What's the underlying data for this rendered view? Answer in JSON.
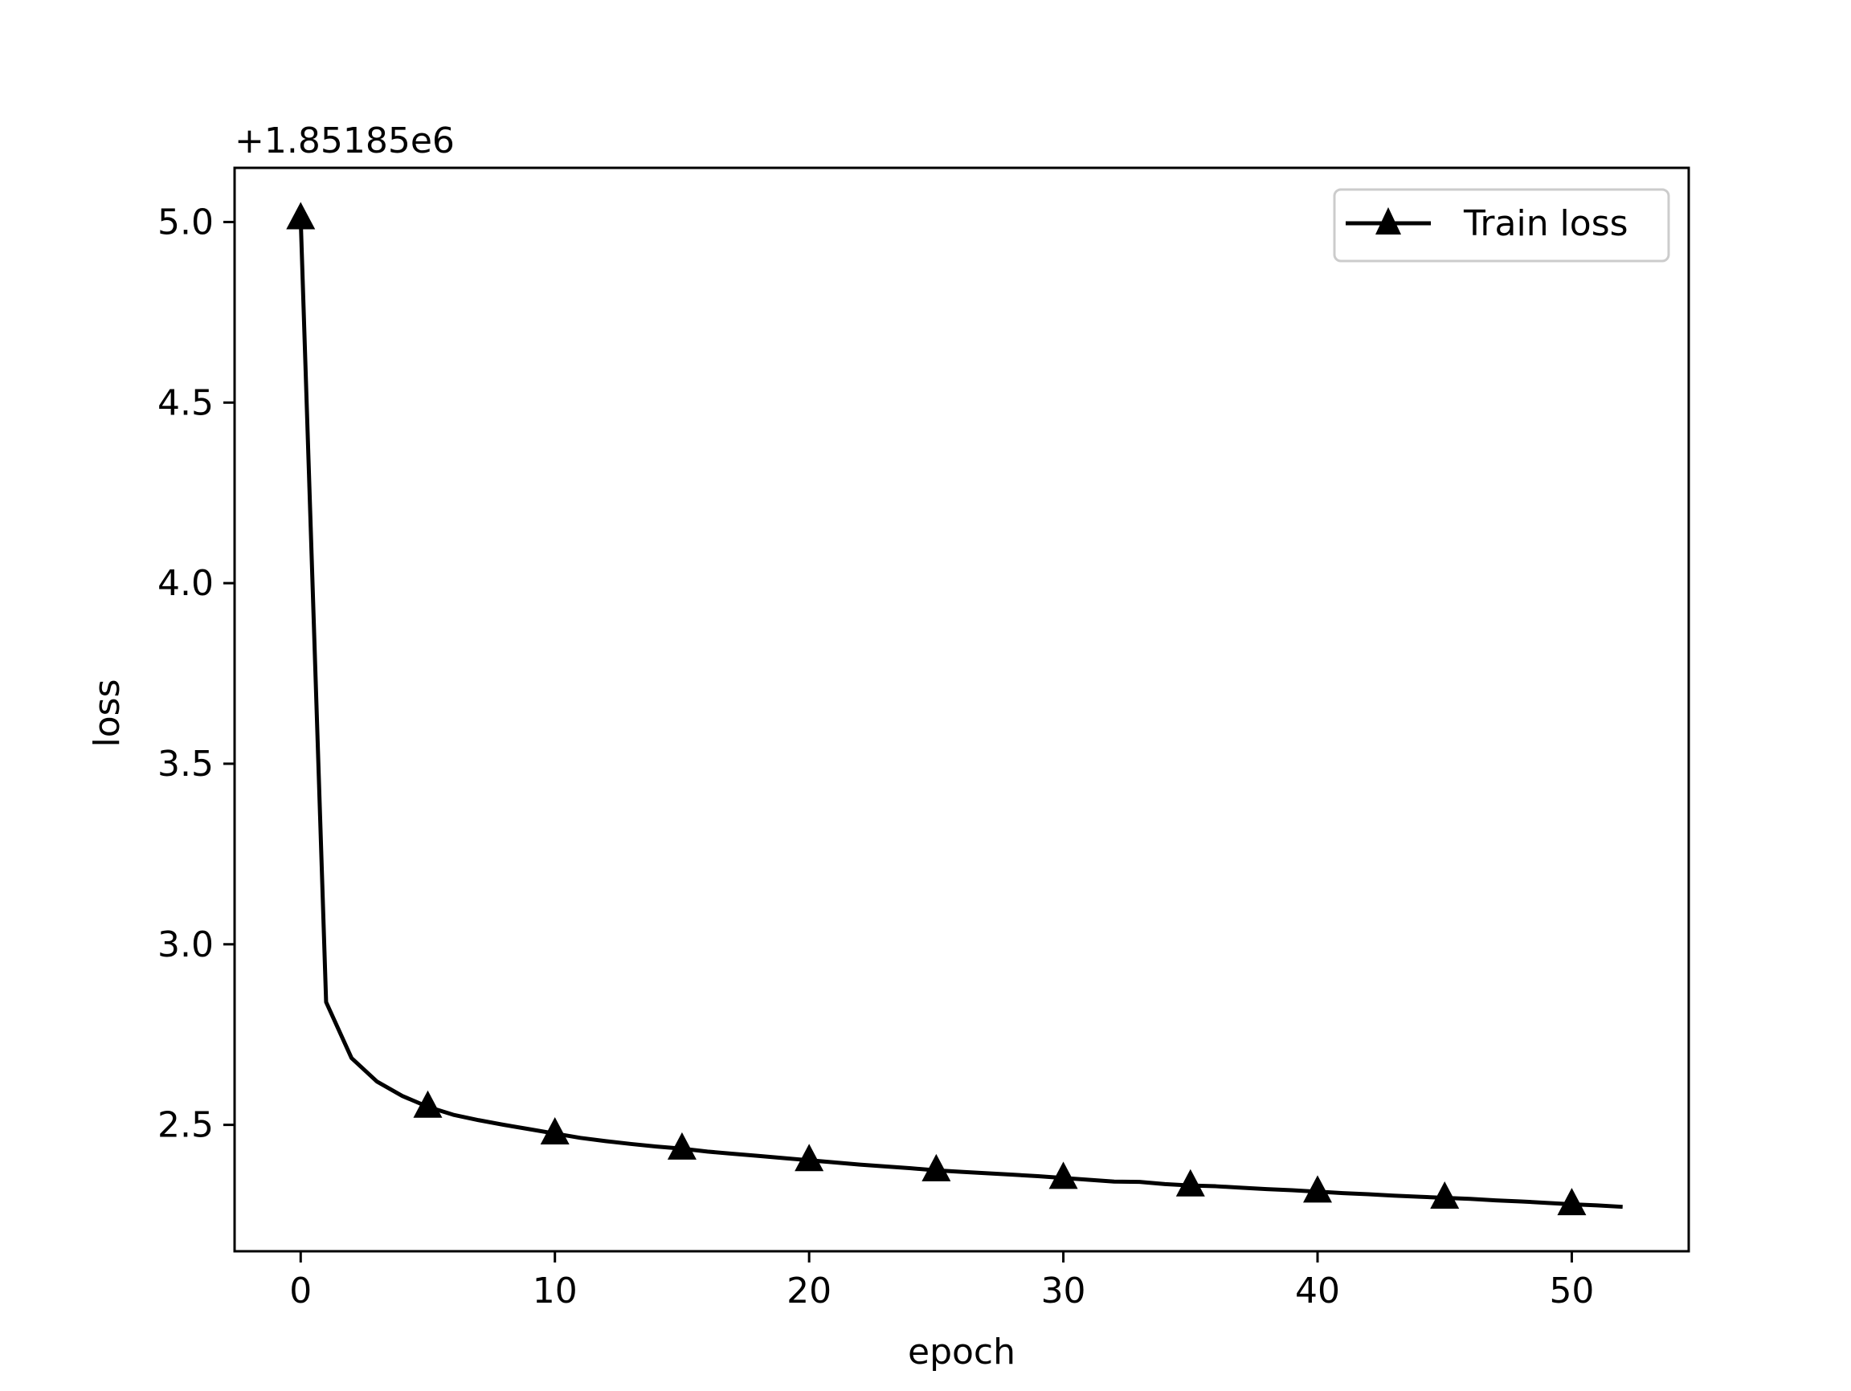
{
  "chart_data": {
    "type": "line",
    "title": "",
    "xlabel": "epoch",
    "ylabel": "loss",
    "y_offset_label": "+1.85185e6",
    "xlim": [
      -2.6,
      54.6
    ],
    "ylim": [
      2.15,
      5.15
    ],
    "x_ticks": [
      0,
      10,
      20,
      30,
      40,
      50
    ],
    "x_tick_labels": [
      "0",
      "10",
      "20",
      "30",
      "40",
      "50"
    ],
    "y_ticks": [
      2.5,
      3.0,
      3.5,
      4.0,
      4.5,
      5.0
    ],
    "y_tick_labels": [
      "2.5",
      "3.0",
      "3.5",
      "4.0",
      "4.5",
      "5.0"
    ],
    "grid": false,
    "legend_position": "top-right",
    "marker_every": 5,
    "series": [
      {
        "name": "Train loss",
        "color": "#000000",
        "marker": "triangle-up",
        "x": [
          0,
          1,
          2,
          3,
          4,
          5,
          6,
          7,
          8,
          9,
          10,
          11,
          12,
          13,
          14,
          15,
          16,
          17,
          18,
          19,
          20,
          21,
          22,
          23,
          24,
          25,
          26,
          27,
          28,
          29,
          30,
          31,
          32,
          33,
          34,
          35,
          36,
          37,
          38,
          39,
          40,
          41,
          42,
          43,
          44,
          45,
          46,
          47,
          48,
          49,
          50,
          51,
          52
        ],
        "y": [
          5.01,
          2.84,
          2.685,
          2.62,
          2.58,
          2.55,
          2.528,
          2.513,
          2.5,
          2.488,
          2.476,
          2.464,
          2.455,
          2.447,
          2.44,
          2.434,
          2.426,
          2.42,
          2.414,
          2.408,
          2.402,
          2.396,
          2.39,
          2.385,
          2.38,
          2.374,
          2.37,
          2.366,
          2.362,
          2.358,
          2.353,
          2.348,
          2.343,
          2.342,
          2.336,
          2.332,
          2.33,
          2.326,
          2.322,
          2.319,
          2.315,
          2.311,
          2.308,
          2.304,
          2.301,
          2.298,
          2.295,
          2.291,
          2.288,
          2.284,
          2.28,
          2.277,
          2.273
        ]
      }
    ]
  }
}
